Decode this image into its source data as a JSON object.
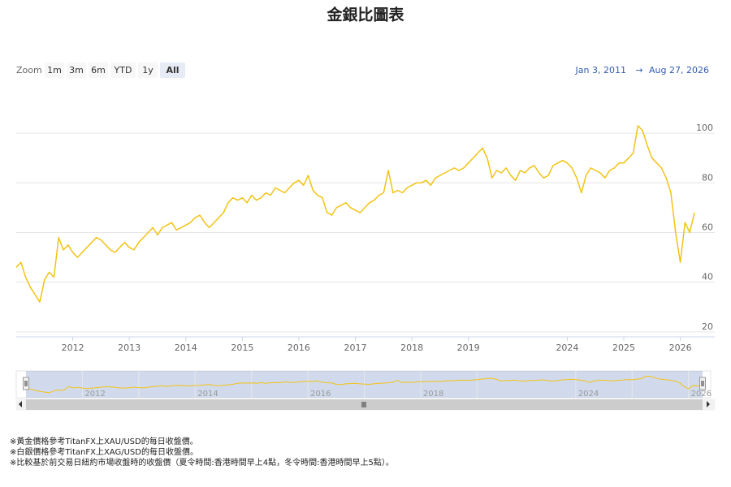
{
  "chart_data": {
    "type": "line",
    "title": "金銀比圖表",
    "color": "#f2c314",
    "categories": [
      null,
      null,
      null,
      null,
      null,
      null,
      null,
      null,
      null,
      null,
      null,
      null,
      "2012",
      null,
      null,
      null,
      null,
      null,
      null,
      null,
      null,
      null,
      null,
      null,
      "2013",
      null,
      null,
      null,
      null,
      null,
      null,
      null,
      null,
      null,
      null,
      null,
      "2014",
      null,
      null,
      null,
      null,
      null,
      null,
      null,
      null,
      null,
      null,
      null,
      "2015",
      null,
      null,
      null,
      null,
      null,
      null,
      null,
      null,
      null,
      null,
      null,
      "2016",
      null,
      null,
      null,
      null,
      null,
      null,
      null,
      null,
      null,
      null,
      null,
      "2017",
      null,
      null,
      null,
      null,
      null,
      null,
      null,
      null,
      null,
      null,
      null,
      "2018",
      null,
      null,
      null,
      null,
      null,
      null,
      null,
      null,
      null,
      null,
      null,
      "2019",
      null,
      null,
      null,
      null,
      null,
      null,
      null,
      null,
      null,
      null,
      null,
      null,
      null,
      null,
      null,
      null,
      null,
      null,
      null,
      null,
      "2024",
      null,
      null,
      null,
      null,
      null,
      null,
      null,
      null,
      null,
      null,
      null,
      "2025",
      null,
      null,
      null,
      null,
      null,
      null,
      null,
      null,
      null,
      null,
      null,
      "2026",
      null,
      null,
      null
    ],
    "values": [
      46,
      48,
      42,
      38,
      35,
      32,
      41,
      44,
      42,
      58,
      53,
      55,
      52,
      50,
      52,
      54,
      56,
      58,
      57,
      55,
      53,
      52,
      54,
      56,
      54,
      53,
      56,
      58,
      60,
      62,
      59,
      62,
      63,
      64,
      61,
      62,
      63,
      64,
      66,
      67,
      64,
      62,
      64,
      66,
      68,
      72,
      74,
      73,
      74,
      72,
      75,
      73,
      74,
      76,
      75,
      78,
      77,
      76,
      78,
      80,
      81,
      79,
      83,
      77,
      75,
      74,
      68,
      67,
      70,
      71,
      72,
      70,
      69,
      68,
      70,
      72,
      73,
      75,
      76,
      85,
      76,
      77,
      76,
      78,
      79,
      80,
      80,
      81,
      79,
      82,
      83,
      84,
      85,
      86,
      85,
      86,
      88,
      90,
      92,
      94,
      90,
      82,
      85,
      84,
      86,
      83,
      81,
      85,
      84,
      86,
      87,
      84,
      82,
      83,
      87,
      88,
      89,
      88,
      86,
      82,
      76,
      83,
      86,
      85,
      84,
      82,
      85,
      86,
      88,
      88,
      90,
      92,
      103,
      101,
      95,
      90,
      88,
      86,
      82,
      76,
      60,
      48,
      64,
      60,
      68
    ],
    "ylim": [
      18,
      118
    ],
    "yticks": [
      20,
      40,
      60,
      80,
      100
    ],
    "grid": true
  },
  "range_selector": {
    "label": "Zoom",
    "buttons": [
      "1m",
      "3m",
      "6m",
      "YTD",
      "1y",
      "All"
    ],
    "selected": 5
  },
  "date_range": {
    "from": "Jan 3, 2011",
    "arrow": "→",
    "to": "Aug 27, 2026"
  },
  "footnotes": [
    "※黃金價格參考TitanFX上XAU/USD的每日收盤價。",
    "※白銀價格參考TitanFX上XAG/USD的每日收盤價。",
    "※比較基於前交易日紐約市場收盤時的收盤價（夏令時間:香港時間早上4點，冬令時間:香港時間早上5點）。"
  ]
}
